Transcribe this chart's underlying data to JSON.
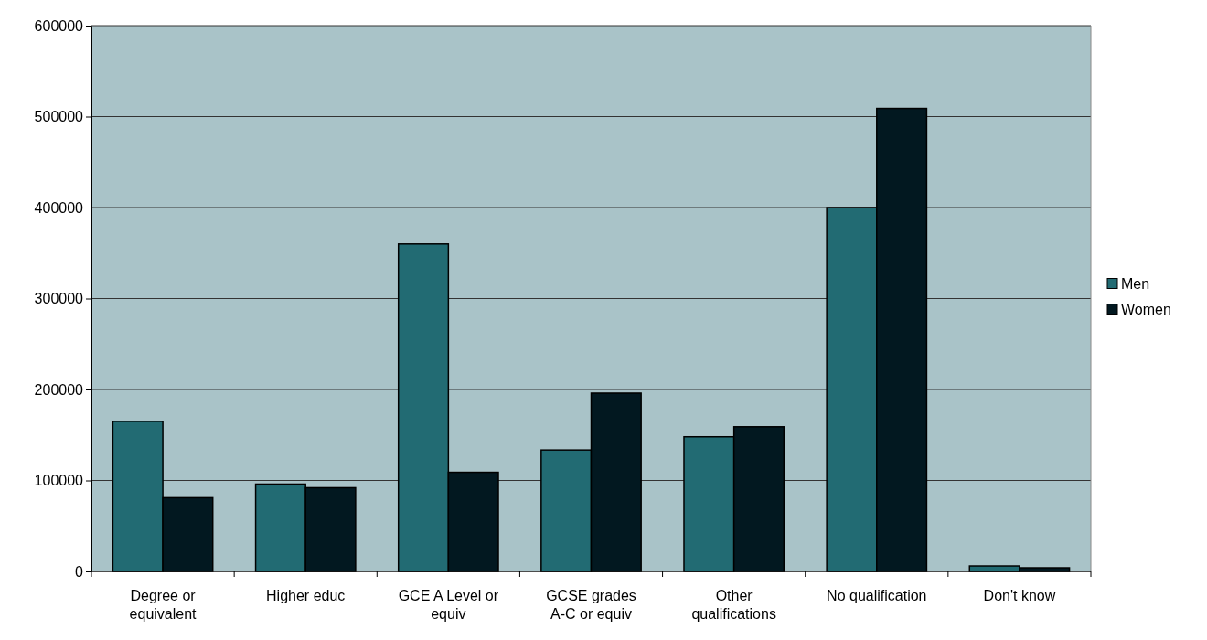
{
  "chart_data": {
    "type": "bar",
    "categories": [
      "Degree or equivalent",
      "Higher educ",
      "GCE A Level or equiv",
      "GCSE grades A-C or equiv",
      "Other qualifications",
      "No qualification",
      "Don't know"
    ],
    "series": [
      {
        "name": "Men",
        "color": "#226b73",
        "values": [
          165000,
          96000,
          360000,
          133500,
          148000,
          400000,
          6000
        ]
      },
      {
        "name": "Women",
        "color": "#021820",
        "values": [
          81000,
          92000,
          109000,
          196000,
          159000,
          509000,
          4000
        ]
      }
    ],
    "ylim": [
      0,
      600000
    ],
    "yticks": [
      0,
      100000,
      200000,
      300000,
      400000,
      500000,
      600000
    ],
    "grid": "y",
    "legend": "right"
  }
}
